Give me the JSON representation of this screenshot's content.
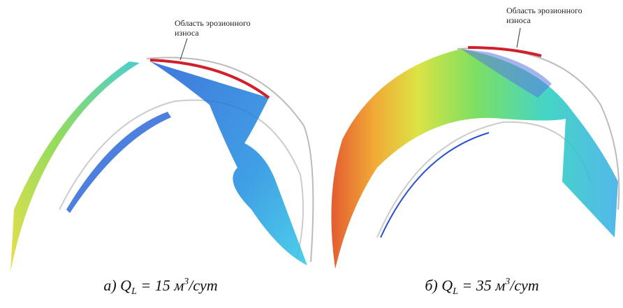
{
  "panels": [
    {
      "annotation": [
        "Область эрозионного",
        "износа"
      ],
      "caption": {
        "label": "а)",
        "symbol": "Q",
        "subscript": "L",
        "equals": "= 15 м",
        "power": "3",
        "unit": "/сут"
      }
    },
    {
      "annotation": [
        "Область эрозионного",
        "износа"
      ],
      "caption": {
        "label": "б)",
        "symbol": "Q",
        "subscript": "L",
        "equals": "= 35 м",
        "power": "3",
        "unit": "/сут"
      }
    }
  ]
}
